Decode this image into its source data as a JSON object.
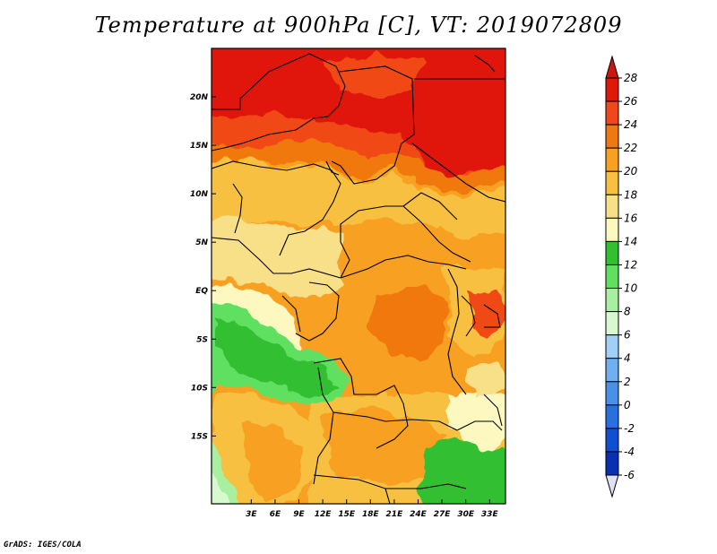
{
  "title": "Temperature at 900hPa [C], VT: 2019072809",
  "credit": "GrADS: IGES/COLA",
  "map": {
    "lon_range": [
      -2,
      35
    ],
    "lat_range": [
      -22,
      25
    ],
    "lon_ticks": [
      {
        "value": 3,
        "label": "3E"
      },
      {
        "value": 6,
        "label": "6E"
      },
      {
        "value": 9,
        "label": "9E"
      },
      {
        "value": 12,
        "label": "12E"
      },
      {
        "value": 15,
        "label": "15E"
      },
      {
        "value": 18,
        "label": "18E"
      },
      {
        "value": 21,
        "label": "21E"
      },
      {
        "value": 24,
        "label": "24E"
      },
      {
        "value": 27,
        "label": "27E"
      },
      {
        "value": 30,
        "label": "30E"
      },
      {
        "value": 33,
        "label": "33E"
      }
    ],
    "lat_ticks": [
      {
        "value": 20,
        "label": "20N"
      },
      {
        "value": 15,
        "label": "15N"
      },
      {
        "value": 10,
        "label": "10N"
      },
      {
        "value": 5,
        "label": "5N"
      },
      {
        "value": 0,
        "label": "EQ"
      },
      {
        "value": -5,
        "label": "5S"
      },
      {
        "value": -10,
        "label": "10S"
      },
      {
        "value": -15,
        "label": "15S"
      }
    ]
  },
  "colorbar": {
    "levels": [
      {
        "label": "28",
        "color": "#e01808"
      },
      {
        "label": "26",
        "color": "#f04818"
      },
      {
        "label": "24",
        "color": "#f07810"
      },
      {
        "label": "22",
        "color": "#f8a020"
      },
      {
        "label": "20",
        "color": "#f8c040"
      },
      {
        "label": "18",
        "color": "#f8e088"
      },
      {
        "label": "16",
        "color": "#fcf8c0"
      },
      {
        "label": "14",
        "color": "#30c030"
      },
      {
        "label": "12",
        "color": "#60e060"
      },
      {
        "label": "10",
        "color": "#a8f0a0"
      },
      {
        "label": "8",
        "color": "#d8f8d0"
      },
      {
        "label": "6",
        "color": "#a0d0f8"
      },
      {
        "label": "4",
        "color": "#70b0f0"
      },
      {
        "label": "2",
        "color": "#4890e8"
      },
      {
        "label": "0",
        "color": "#2870e0"
      },
      {
        "label": "-2",
        "color": "#1050d0"
      },
      {
        "label": "-4",
        "color": "#0830b0"
      },
      {
        "label": "-6",
        "color": "#081880"
      }
    ],
    "overflow_top_color": "#c81810",
    "underflow_bottom_color": "#e0e0f8"
  }
}
